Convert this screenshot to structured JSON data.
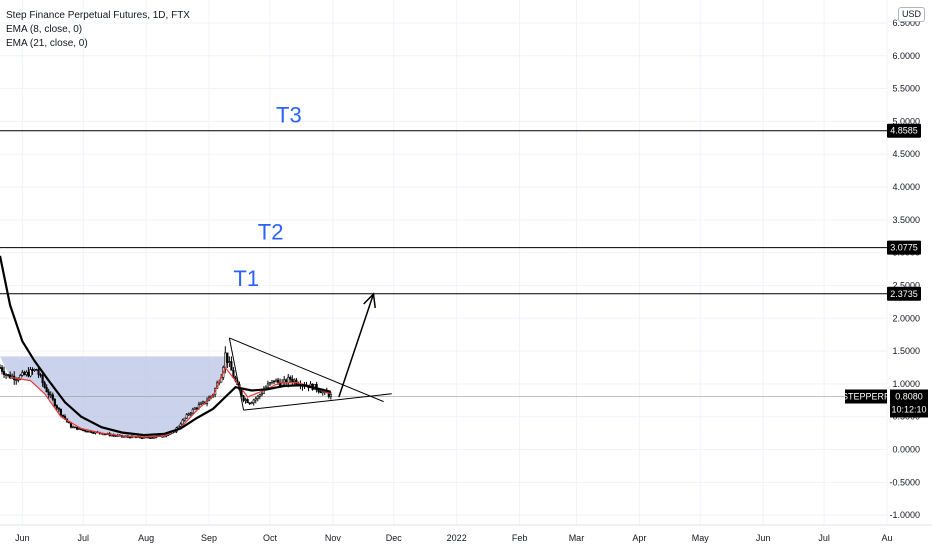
{
  "legend": {
    "title": "Step Finance Perpetual Futures, 1D, FTX",
    "ema1": "EMA (8, close, 0)",
    "ema2": "EMA (21, close, 0)"
  },
  "currency_button": "USD",
  "colors": {
    "grid": "#f0f3fa",
    "text": "#131722",
    "target_label": "#2962ff",
    "ema_fast": "#e53935",
    "ema_slow": "#000000",
    "cup_fill": "#b9c3e4",
    "price_tag": "#000000"
  },
  "chart_data": {
    "type": "candlestick",
    "title": "Step Finance Perpetual Futures, 1D, FTX",
    "y_ticks": [
      "-1.0000",
      "-0.5000",
      "0.0000",
      "0.5000",
      "1.0000",
      "1.5000",
      "2.0000",
      "2.5000",
      "3.0000",
      "3.5000",
      "4.0000",
      "4.5000",
      "5.0000",
      "5.5000",
      "6.0000",
      "6.5000"
    ],
    "ylim": [
      -1.15,
      6.85
    ],
    "x_ticks": [
      "Jun",
      "Jul",
      "Aug",
      "Sep",
      "Oct",
      "Nov",
      "Dec",
      "2022",
      "Feb",
      "Mar",
      "Apr",
      "May",
      "Jun",
      "Jul",
      "Au"
    ],
    "x_start": "2021-05-21",
    "x_end": "2022-08-01",
    "price_levels": [
      {
        "label": "T3",
        "value": 4.8585,
        "value_text": "4.8585"
      },
      {
        "label": "T2",
        "value": 3.0775,
        "value_text": "3.0775"
      },
      {
        "label": "T1",
        "value": 2.3735,
        "value_text": "2.3735"
      }
    ],
    "current_price": {
      "symbol": "STEPPERP",
      "value": 0.808,
      "value_text": "0.8080",
      "countdown": "10:12:10"
    },
    "close_path": [
      [
        "2021-05-21",
        1.25
      ],
      [
        "2021-05-25",
        1.12
      ],
      [
        "2021-05-30",
        1.1
      ],
      [
        "2021-06-03",
        1.15
      ],
      [
        "2021-06-08",
        1.22
      ],
      [
        "2021-06-12",
        0.95
      ],
      [
        "2021-06-16",
        0.75
      ],
      [
        "2021-06-20",
        0.55
      ],
      [
        "2021-06-25",
        0.35
      ],
      [
        "2021-06-30",
        0.3
      ],
      [
        "2021-07-05",
        0.27
      ],
      [
        "2021-07-10",
        0.25
      ],
      [
        "2021-07-15",
        0.22
      ],
      [
        "2021-07-20",
        0.2
      ],
      [
        "2021-07-25",
        0.19
      ],
      [
        "2021-07-31",
        0.18
      ],
      [
        "2021-08-05",
        0.19
      ],
      [
        "2021-08-10",
        0.22
      ],
      [
        "2021-08-14",
        0.25
      ],
      [
        "2021-08-18",
        0.4
      ],
      [
        "2021-08-22",
        0.55
      ],
      [
        "2021-08-26",
        0.65
      ],
      [
        "2021-08-30",
        0.72
      ],
      [
        "2021-09-03",
        0.85
      ],
      [
        "2021-09-07",
        1.15
      ],
      [
        "2021-09-09",
        1.45
      ],
      [
        "2021-09-12",
        1.2
      ],
      [
        "2021-09-15",
        0.95
      ],
      [
        "2021-09-18",
        0.78
      ],
      [
        "2021-09-21",
        0.72
      ],
      [
        "2021-09-25",
        0.8
      ],
      [
        "2021-09-29",
        0.95
      ],
      [
        "2021-10-03",
        1.05
      ],
      [
        "2021-10-07",
        1.0
      ],
      [
        "2021-10-11",
        1.08
      ],
      [
        "2021-10-15",
        1.02
      ],
      [
        "2021-10-19",
        0.98
      ],
      [
        "2021-10-23",
        0.95
      ],
      [
        "2021-10-27",
        0.88
      ],
      [
        "2021-10-31",
        0.82
      ]
    ],
    "ema_fast_path": [
      [
        "2021-05-26",
        1.1
      ],
      [
        "2021-06-05",
        1.05
      ],
      [
        "2021-06-12",
        0.85
      ],
      [
        "2021-06-20",
        0.5
      ],
      [
        "2021-06-30",
        0.32
      ],
      [
        "2021-07-10",
        0.25
      ],
      [
        "2021-07-20",
        0.21
      ],
      [
        "2021-07-31",
        0.19
      ],
      [
        "2021-08-10",
        0.21
      ],
      [
        "2021-08-18",
        0.33
      ],
      [
        "2021-08-26",
        0.6
      ],
      [
        "2021-09-03",
        0.82
      ],
      [
        "2021-09-09",
        1.25
      ],
      [
        "2021-09-14",
        1.05
      ],
      [
        "2021-09-20",
        0.8
      ],
      [
        "2021-09-28",
        0.9
      ],
      [
        "2021-10-06",
        1.02
      ],
      [
        "2021-10-14",
        1.02
      ],
      [
        "2021-10-22",
        0.96
      ],
      [
        "2021-10-31",
        0.85
      ]
    ],
    "ema_slow_path": [
      [
        "2021-05-21",
        2.95
      ],
      [
        "2021-05-26",
        2.2
      ],
      [
        "2021-06-01",
        1.65
      ],
      [
        "2021-06-07",
        1.35
      ],
      [
        "2021-06-14",
        1.05
      ],
      [
        "2021-06-22",
        0.72
      ],
      [
        "2021-06-30",
        0.5
      ],
      [
        "2021-07-10",
        0.34
      ],
      [
        "2021-07-20",
        0.26
      ],
      [
        "2021-07-31",
        0.22
      ],
      [
        "2021-08-10",
        0.24
      ],
      [
        "2021-08-18",
        0.32
      ],
      [
        "2021-08-26",
        0.48
      ],
      [
        "2021-09-03",
        0.62
      ],
      [
        "2021-09-09",
        0.8
      ],
      [
        "2021-09-14",
        0.95
      ],
      [
        "2021-09-22",
        0.9
      ],
      [
        "2021-09-30",
        0.92
      ],
      [
        "2021-10-08",
        0.97
      ],
      [
        "2021-10-18",
        0.98
      ],
      [
        "2021-10-31",
        0.88
      ]
    ],
    "cup_region": {
      "x0": "2021-05-21",
      "x1": "2021-09-11",
      "top": 1.42
    },
    "triangle": {
      "upper": [
        [
          "2021-09-11",
          1.7
        ],
        [
          "2021-11-26",
          0.73
        ]
      ],
      "lower": [
        [
          "2021-09-18",
          0.6
        ],
        [
          "2021-11-30",
          0.85
        ]
      ]
    },
    "projection_arrow": [
      [
        "2021-10-31",
        0.8
      ],
      [
        "2021-11-21",
        2.37
      ]
    ]
  }
}
